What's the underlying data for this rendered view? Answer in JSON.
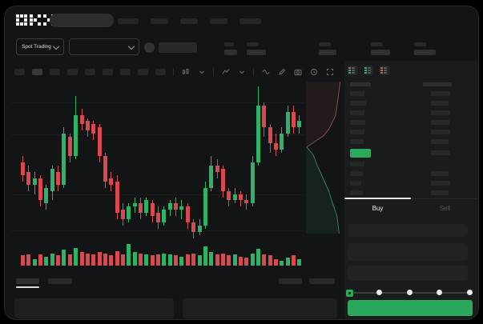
{
  "app": {
    "name": "OKX",
    "accent_green": "#2aa95d",
    "candle_up": "#2fb166",
    "candle_down": "#d94a4f",
    "window_bg": "#121416"
  },
  "navbar": {
    "logo": "OKX",
    "search_value": "",
    "nav_item_widths": [
      26,
      22,
      22,
      22,
      27
    ]
  },
  "subheader": {
    "market_selector_label": "Spot Trading",
    "pair_selector_value": "",
    "stats": [
      {
        "label_w": 12,
        "value_w": 16
      },
      {
        "label_w": 15,
        "value_w": 24
      },
      {
        "label_w": 15,
        "value_w": 22
      },
      {
        "label_w": 15,
        "value_w": 24
      },
      {
        "label_w": 15,
        "value_w": 27
      }
    ]
  },
  "toolbar": {
    "interval_count": 9,
    "active_interval_index": 1
  },
  "chart_data": {
    "type": "candlestick",
    "title": "",
    "xlabel": "",
    "ylabel": "",
    "value_range": [
      42,
      92
    ],
    "grid": true,
    "candles_ohlc": [
      [
        66,
        68,
        60,
        62
      ],
      [
        63,
        65,
        57,
        59
      ],
      [
        59,
        63,
        56,
        61
      ],
      [
        61,
        62,
        52,
        54
      ],
      [
        53,
        59,
        51,
        58
      ],
      [
        57,
        65,
        54,
        64
      ],
      [
        63,
        65,
        57,
        59
      ],
      [
        59,
        77,
        58,
        75
      ],
      [
        74,
        75,
        66,
        68
      ],
      [
        68,
        87,
        67,
        81
      ],
      [
        81,
        83,
        76,
        78
      ],
      [
        79,
        80,
        74,
        76
      ],
      [
        78,
        79,
        73,
        75
      ],
      [
        77,
        78,
        66,
        68
      ],
      [
        68,
        69,
        58,
        60
      ],
      [
        61,
        63,
        57,
        59
      ],
      [
        60,
        62,
        48,
        50
      ],
      [
        51,
        53,
        46,
        48
      ],
      [
        48,
        53,
        47,
        52
      ],
      [
        52,
        55,
        50,
        53
      ],
      [
        53,
        55,
        48,
        50
      ],
      [
        50,
        55,
        49,
        54
      ],
      [
        53,
        54,
        47,
        49
      ],
      [
        50,
        52,
        45,
        47
      ],
      [
        47,
        52,
        46,
        51
      ],
      [
        51,
        54,
        49,
        53
      ],
      [
        53,
        55,
        49,
        51
      ],
      [
        51,
        54,
        48,
        52
      ],
      [
        52,
        53,
        45,
        47
      ],
      [
        47,
        48,
        42,
        44
      ],
      [
        44,
        48,
        43,
        46
      ],
      [
        46,
        60,
        45,
        58
      ],
      [
        58,
        68,
        57,
        65
      ],
      [
        65,
        67,
        61,
        63
      ],
      [
        64,
        65,
        55,
        57
      ],
      [
        57,
        58,
        52,
        54
      ],
      [
        54,
        58,
        53,
        56
      ],
      [
        56,
        57,
        52,
        54
      ],
      [
        54,
        56,
        51,
        53
      ],
      [
        53,
        68,
        52,
        66
      ],
      [
        66,
        90,
        65,
        84
      ],
      [
        84,
        85,
        74,
        77
      ],
      [
        77,
        78,
        69,
        72
      ],
      [
        72,
        75,
        68,
        70
      ],
      [
        70,
        77,
        69,
        75
      ],
      [
        75,
        84,
        74,
        82
      ],
      [
        82,
        84,
        75,
        77
      ],
      [
        77,
        81,
        75,
        79
      ]
    ],
    "volumes": [
      0.45,
      0.5,
      0.3,
      0.5,
      0.4,
      0.55,
      0.45,
      0.7,
      0.5,
      0.8,
      0.6,
      0.55,
      0.5,
      0.6,
      0.55,
      0.45,
      0.65,
      0.5,
      0.95,
      0.6,
      0.55,
      0.5,
      0.45,
      0.5,
      0.55,
      0.5,
      0.45,
      0.4,
      0.5,
      0.55,
      0.45,
      0.85,
      0.6,
      0.5,
      0.55,
      0.45,
      0.5,
      0.4,
      0.35,
      0.55,
      0.75,
      0.5,
      0.45,
      0.3,
      0.2,
      0.35,
      0.45,
      0.3
    ],
    "depth": {
      "asks_line": [
        [
          0.93,
          0.04
        ],
        [
          0.86,
          0.16
        ],
        [
          0.8,
          0.25
        ],
        [
          0.62,
          0.33
        ],
        [
          0.48,
          0.37
        ],
        [
          0.22,
          0.41
        ],
        [
          0.02,
          0.44
        ]
      ],
      "bids_line": [
        [
          0.02,
          0.44
        ],
        [
          0.2,
          0.49
        ],
        [
          0.3,
          0.55
        ],
        [
          0.44,
          0.62
        ],
        [
          0.52,
          0.66
        ],
        [
          0.62,
          0.71
        ],
        [
          0.7,
          0.77
        ],
        [
          0.84,
          0.86
        ],
        [
          0.9,
          0.97
        ]
      ],
      "ask_fill": "rgba(190,85,85,0.10)",
      "ask_stroke": "#7e5250",
      "bid_fill": "rgba(55,170,110,0.10)",
      "bid_stroke": "#3e7a63"
    }
  },
  "order_book": {
    "view_modes": [
      "book-both-icon",
      "book-bids-icon",
      "book-asks-icon"
    ],
    "header_left_w": 26,
    "header_right_w": 36,
    "asks": [
      {
        "l": 18,
        "r": 24
      },
      {
        "l": 20,
        "r": 22
      },
      {
        "l": 18,
        "r": 24
      },
      {
        "l": 19,
        "r": 23
      },
      {
        "l": 18,
        "r": 24
      },
      {
        "l": 17,
        "r": 22
      }
    ],
    "last_price_row": {
      "pill_color": "#2aa95d",
      "right_w": 24
    },
    "bids": [
      {
        "l": 18,
        "r": 0
      },
      {
        "l": 16,
        "r": 22
      },
      {
        "l": 14,
        "r": 24
      },
      {
        "l": 16,
        "r": 22
      }
    ]
  },
  "trade_panel": {
    "tabs": [
      {
        "label": "Buy",
        "active": true
      },
      {
        "label": "Sell",
        "active": false
      }
    ],
    "fields": 3,
    "slider": {
      "stops": 5,
      "selected_index": 0
    },
    "submit_label": ""
  },
  "bottom_section": {
    "tab_widths": [
      29,
      30
    ],
    "active_tab_index": 0,
    "right_item_widths": [
      29,
      32
    ],
    "panels": 2
  }
}
